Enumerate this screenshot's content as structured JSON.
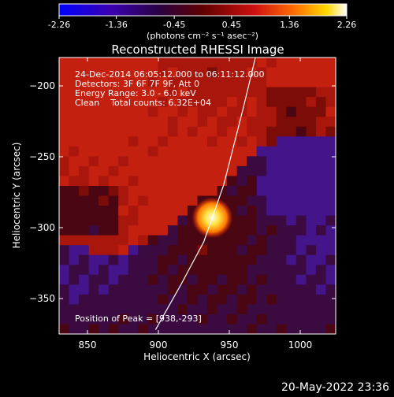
{
  "colorbar": {
    "ticks": [
      "-2.26",
      "-1.36",
      "-0.45",
      "0.45",
      "1.36",
      "2.26"
    ],
    "units_label": "(photons cm⁻² s⁻¹ asec⁻²)",
    "min": -2.26,
    "max": 2.26,
    "colors": [
      "#0000ff",
      "#3a00a0",
      "#2a0030",
      "#6a0000",
      "#d01010",
      "#ff6a00",
      "#ffd400",
      "#ffffff"
    ]
  },
  "chart_data": {
    "type": "heatmap",
    "title": "Reconstructed RHESSI Image",
    "xlabel": "Heliocentric X (arcsec)",
    "ylabel": "Heliocentric Y (arcsec)",
    "xlim": [
      830,
      1025
    ],
    "ylim": [
      -375,
      -180
    ],
    "x_ticks": [
      850,
      900,
      950,
      1000
    ],
    "y_ticks": [
      -200,
      -250,
      -300,
      -350
    ],
    "peak": {
      "x": 938,
      "y": -293
    },
    "annotations": [
      "24-Dec-2014 06:05:12.000 to 06:11:12.000",
      "Detectors: 3F 6F 7F 9F, Att 0",
      "Energy Range: 3.0 - 6.0 keV",
      "Clean    Total counts: 6.32E+04",
      "Position of Peak = [938,-293]"
    ],
    "limb_points": [
      [
        898,
        -372
      ],
      [
        916,
        -340
      ],
      [
        932,
        -310
      ],
      [
        946,
        -270
      ],
      [
        960,
        -215
      ],
      [
        972,
        -165
      ]
    ]
  },
  "footer": {
    "timestamp": "20-May-2022 23:36"
  }
}
